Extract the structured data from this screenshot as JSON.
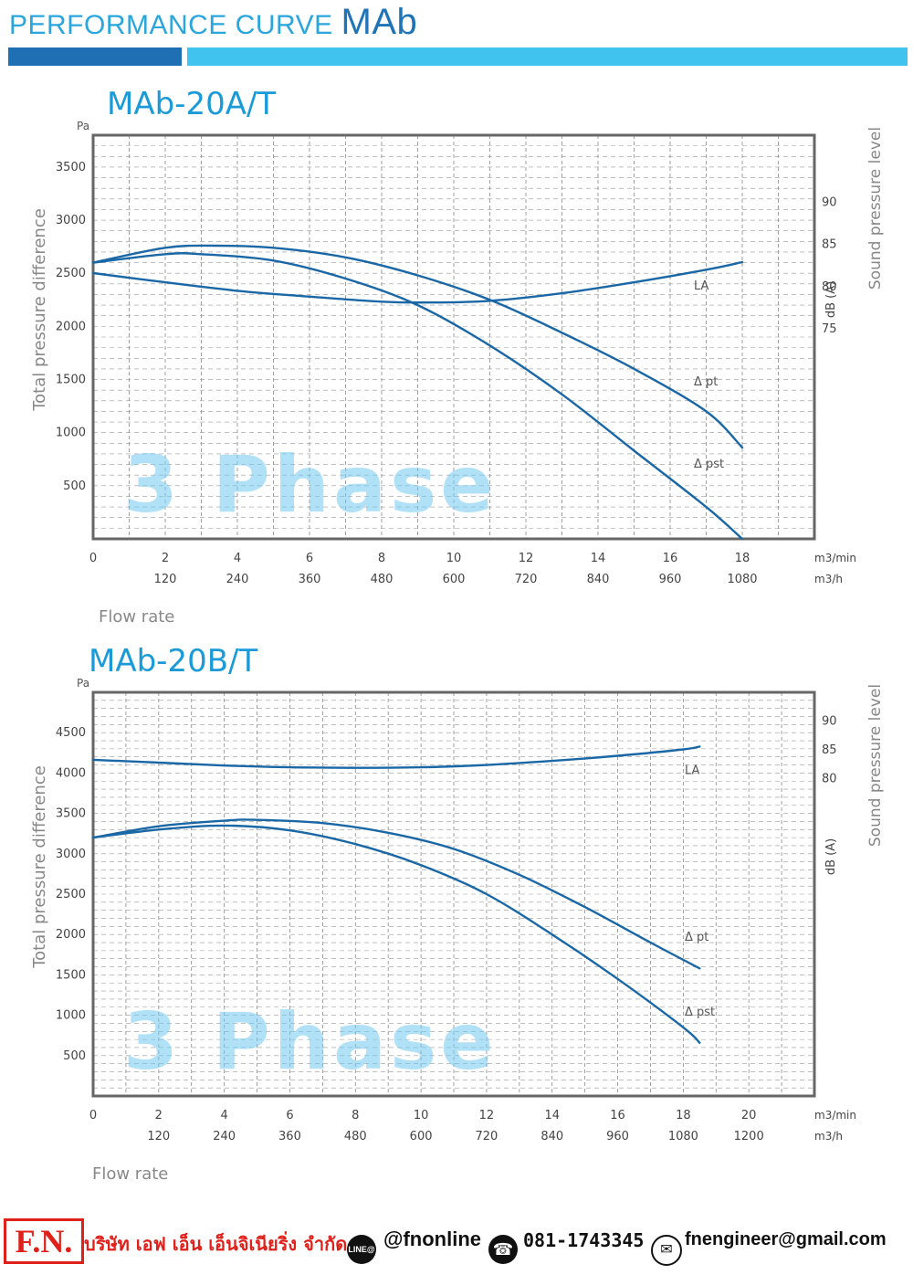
{
  "header": {
    "title_prefix": "PERFORMANCE CURVE",
    "title_model": "MAb"
  },
  "watermark": "3 Phase",
  "colors": {
    "curve": "#1a67a6",
    "accent": "#1a9ad6",
    "bar_dark": "#1f6fb5",
    "bar_light": "#41c3f0",
    "brand_red": "#e0201a"
  },
  "chart_data": [
    {
      "type": "line",
      "title": "MAb-20A/T",
      "ylabel": "Total pressure difference",
      "yunit": "Pa",
      "y2label": "Sound pressure level",
      "y2unit": "dB (A)",
      "xlabel": "Flow rate",
      "xunit": "m3/min",
      "x2unit": "m3/h",
      "xlim": [
        0,
        20
      ],
      "ylim": [
        0,
        3800
      ],
      "y2lim": [
        50,
        98
      ],
      "x_ticks": [
        "0",
        "2",
        "4",
        "6",
        "8",
        "10",
        "12",
        "14",
        "16",
        "18"
      ],
      "x2_ticks": [
        "120",
        "240",
        "360",
        "480",
        "600",
        "720",
        "840",
        "960",
        "1080"
      ],
      "y_ticks": [
        "500",
        "1000",
        "1500",
        "2000",
        "2500",
        "3000",
        "3500"
      ],
      "y2_ticks": [
        "75",
        "80",
        "85",
        "90"
      ],
      "grid": true,
      "series": [
        {
          "name": "Δ pt",
          "axis": "left",
          "x": [
            0,
            2,
            3.4,
            5,
            7,
            9,
            11,
            13,
            15,
            17,
            18
          ],
          "y": [
            2600,
            2740,
            2760,
            2740,
            2650,
            2480,
            2250,
            1940,
            1600,
            1200,
            860
          ]
        },
        {
          "name": "Δ pst",
          "axis": "left",
          "x": [
            0,
            2,
            3,
            5,
            7,
            9,
            11,
            13,
            15,
            17,
            18
          ],
          "y": [
            2600,
            2680,
            2680,
            2620,
            2450,
            2200,
            1820,
            1360,
            830,
            300,
            0
          ]
        },
        {
          "name": "LA",
          "axis": "right",
          "x": [
            0,
            2,
            4,
            6,
            8,
            9.3,
            11,
            13,
            15,
            17,
            18
          ],
          "y": [
            81.6,
            80.5,
            79.5,
            78.8,
            78.2,
            78.1,
            78.3,
            79.2,
            80.5,
            82.0,
            82.9
          ]
        }
      ]
    },
    {
      "type": "line",
      "title": "MAb-20B/T",
      "ylabel": "Total pressure difference",
      "yunit": "Pa",
      "y2label": "Sound pressure level",
      "y2unit": "dB (A)",
      "xlabel": "Flow rate",
      "xunit": "m3/min",
      "x2unit": "m3/h",
      "xlim": [
        0,
        22
      ],
      "ylim": [
        0,
        5000
      ],
      "y2lim": [
        25,
        95
      ],
      "x_ticks": [
        "0",
        "2",
        "4",
        "6",
        "8",
        "10",
        "12",
        "14",
        "16",
        "18",
        "20"
      ],
      "x2_ticks": [
        "120",
        "240",
        "360",
        "480",
        "600",
        "720",
        "840",
        "960",
        "1080",
        "1200"
      ],
      "y_ticks": [
        "500",
        "1000",
        "1500",
        "2000",
        "2500",
        "3000",
        "3500",
        "4000",
        "4500"
      ],
      "y2_ticks": [
        "80",
        "85",
        "90"
      ],
      "grid": true,
      "series": [
        {
          "name": "Δ pt",
          "axis": "left",
          "x": [
            0,
            2,
            4,
            5,
            7,
            9,
            11,
            13,
            15,
            17,
            18.5
          ],
          "y": [
            3200,
            3340,
            3410,
            3420,
            3380,
            3260,
            3060,
            2740,
            2340,
            1900,
            1580
          ]
        },
        {
          "name": "Δ pst",
          "axis": "left",
          "x": [
            0,
            2,
            4,
            6,
            8,
            10,
            12,
            14,
            16,
            18,
            18.5
          ],
          "y": [
            3200,
            3300,
            3350,
            3290,
            3120,
            2860,
            2500,
            2000,
            1450,
            850,
            660
          ]
        },
        {
          "name": "LA",
          "axis": "right",
          "x": [
            0,
            2,
            4,
            6,
            8,
            10,
            12,
            14,
            16,
            18,
            18.5
          ],
          "y": [
            83.3,
            82.8,
            82.3,
            82.0,
            81.9,
            82.0,
            82.4,
            83.1,
            84.0,
            85.1,
            85.6
          ]
        }
      ]
    }
  ],
  "footer": {
    "logo": "F.N.",
    "company": "บริษัท เอฟ เอ็น เอ็นจิเนียริ่ง จำกัด",
    "line_icon_label": "LINE@",
    "line_id": "@fnonline",
    "phone_icon": "phone-icon",
    "phone": "081-1743345",
    "mail_icon": "mail-icon",
    "email": "fnengineer@gmail.com"
  }
}
